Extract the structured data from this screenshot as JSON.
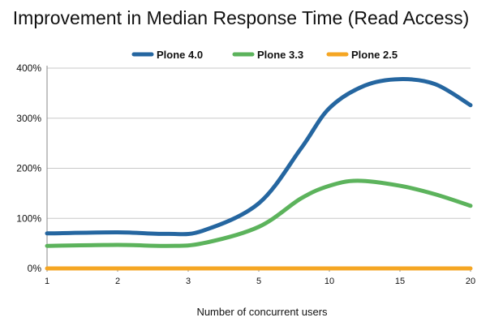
{
  "chart_data": {
    "type": "line",
    "title": "Improvement in Median Response Time (Read Access)",
    "xlabel": "Number of concurrent users",
    "ylabel": "",
    "categories": [
      "1",
      "2",
      "3",
      "5",
      "10",
      "15",
      "20"
    ],
    "y_ticks": [
      "0%",
      "100%",
      "200%",
      "300%",
      "400%"
    ],
    "ylim": [
      0,
      400
    ],
    "grid": true,
    "legend_position": "top-center",
    "series": [
      {
        "name": "Plone 4.0",
        "color": "#2566a0",
        "values": [
          70,
          72,
          72,
          130,
          320,
          378,
          326
        ],
        "shape": [
          [
            0,
            70
          ],
          [
            1,
            72
          ],
          [
            1.7,
            69
          ],
          [
            2.2,
            75
          ],
          [
            3,
            130
          ],
          [
            3.6,
            240
          ],
          [
            4,
            320
          ],
          [
            4.5,
            365
          ],
          [
            5,
            378
          ],
          [
            5.5,
            368
          ],
          [
            6,
            326
          ]
        ]
      },
      {
        "name": "Plone 3.3",
        "color": "#5cb35c",
        "values": [
          45,
          47,
          47,
          83,
          165,
          165,
          125
        ],
        "shape": [
          [
            0,
            45
          ],
          [
            1,
            47
          ],
          [
            1.7,
            45
          ],
          [
            2.2,
            50
          ],
          [
            3,
            83
          ],
          [
            3.6,
            140
          ],
          [
            4,
            165
          ],
          [
            4.4,
            175
          ],
          [
            5,
            165
          ],
          [
            5.5,
            148
          ],
          [
            6,
            125
          ]
        ]
      },
      {
        "name": "Plone 2.5",
        "color": "#f5a623",
        "values": [
          0,
          0,
          0,
          0,
          0,
          0,
          0
        ],
        "shape": [
          [
            0,
            0
          ],
          [
            6,
            0
          ]
        ]
      }
    ]
  }
}
